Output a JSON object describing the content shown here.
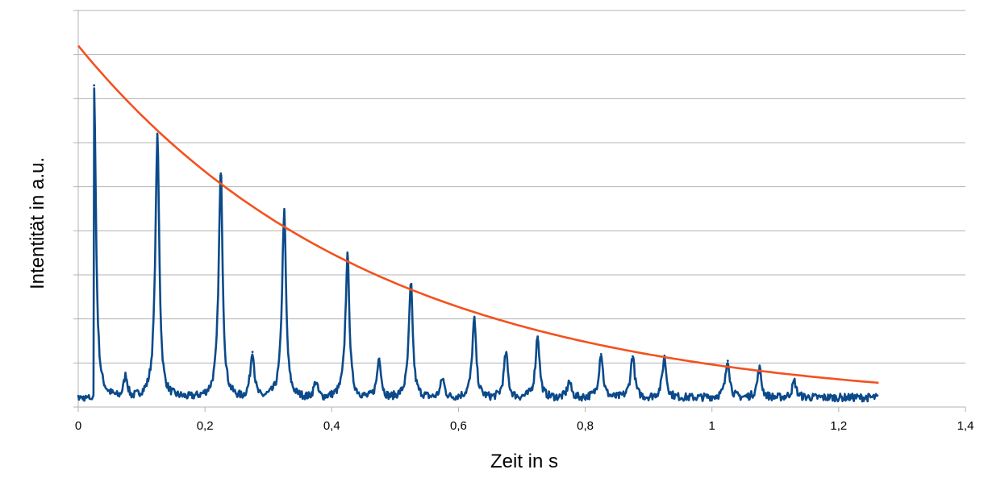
{
  "chart_data": {
    "type": "line",
    "title": "",
    "xlabel": "Zeit in s",
    "ylabel": "Intentität in a.u.",
    "xlim": [
      0,
      1.4
    ],
    "ylim": [
      0,
      9
    ],
    "x_ticks": [
      "0",
      "0,2",
      "0,4",
      "0,6",
      "0,8",
      "1",
      "1,2",
      "1,4"
    ],
    "y_tick_labels_shown": false,
    "grid": "horizontal",
    "legend": "none",
    "series": [
      {
        "color": "#0b4a8a",
        "baseline": 0.18,
        "x_end": 1.263,
        "peaks": [
          {
            "x": 0.025,
            "y": 7.3
          },
          {
            "x": 0.125,
            "y": 6.1
          },
          {
            "x": 0.225,
            "y": 5.3
          },
          {
            "x": 0.325,
            "y": 4.4
          },
          {
            "x": 0.425,
            "y": 3.4
          },
          {
            "x": 0.525,
            "y": 2.75
          },
          {
            "x": 0.625,
            "y": 1.95
          },
          {
            "x": 0.725,
            "y": 1.6
          },
          {
            "x": 0.825,
            "y": 1.2
          },
          {
            "x": 0.925,
            "y": 1.1
          },
          {
            "x": 1.025,
            "y": 1.05
          },
          {
            "x": 1.075,
            "y": 0.85
          },
          {
            "x": 0.075,
            "y": 0.7
          },
          {
            "x": 0.275,
            "y": 1.25
          },
          {
            "x": 0.475,
            "y": 1.1
          },
          {
            "x": 0.575,
            "y": 0.62
          },
          {
            "x": 0.675,
            "y": 1.2
          },
          {
            "x": 0.775,
            "y": 0.55
          },
          {
            "x": 0.875,
            "y": 1.15
          },
          {
            "x": 0.375,
            "y": 0.55
          },
          {
            "x": 1.13,
            "y": 0.55
          }
        ]
      },
      {
        "color": "#f4511e",
        "curve": "exponential-decay",
        "x": [
          0,
          0.2,
          0.4,
          0.6,
          0.8,
          1.0,
          1.263
        ],
        "y": [
          8.2,
          5.55,
          3.75,
          2.55,
          1.75,
          1.15,
          0.55
        ]
      }
    ]
  }
}
